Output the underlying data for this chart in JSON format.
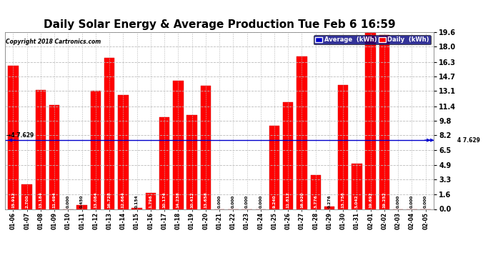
{
  "title": "Daily Solar Energy & Average Production Tue Feb 6 16:59",
  "copyright": "Copyright 2018 Cartronics.com",
  "categories": [
    "01-06",
    "01-07",
    "01-08",
    "01-09",
    "01-10",
    "01-11",
    "01-12",
    "01-13",
    "01-14",
    "01-15",
    "01-16",
    "01-17",
    "01-18",
    "01-19",
    "01-20",
    "01-21",
    "01-22",
    "01-23",
    "01-24",
    "01-25",
    "01-26",
    "01-27",
    "01-28",
    "01-29",
    "01-30",
    "01-31",
    "02-01",
    "02-02",
    "02-03",
    "02-04",
    "02-05"
  ],
  "values": [
    15.912,
    2.7,
    13.184,
    11.494,
    0.0,
    0.45,
    13.084,
    16.728,
    12.664,
    0.154,
    1.796,
    10.174,
    14.238,
    10.412,
    13.658,
    0.0,
    0.0,
    0.0,
    0.0,
    9.24,
    11.812,
    16.92,
    3.776,
    0.276,
    13.756,
    5.042,
    19.692,
    19.252,
    0.0,
    0.0,
    0.0
  ],
  "average": 7.629,
  "bar_color": "#FF0000",
  "average_color": "#0000CC",
  "background_color": "#FFFFFF",
  "plot_bg_color": "#FFFFFF",
  "grid_color": "#BBBBBB",
  "title_fontsize": 11,
  "ylim": [
    0.0,
    19.6
  ],
  "yticks": [
    0.0,
    1.6,
    3.3,
    4.9,
    6.5,
    8.2,
    9.8,
    11.4,
    13.1,
    14.7,
    16.3,
    18.0,
    19.6
  ],
  "legend_avg_label": "Average  (kWh)",
  "legend_daily_label": "Daily  (kWh)",
  "legend_avg_bg": "#0000CC",
  "legend_daily_bg": "#FF0000",
  "avg_label_left": "→4 7.629",
  "avg_label_right": "4 7.629"
}
